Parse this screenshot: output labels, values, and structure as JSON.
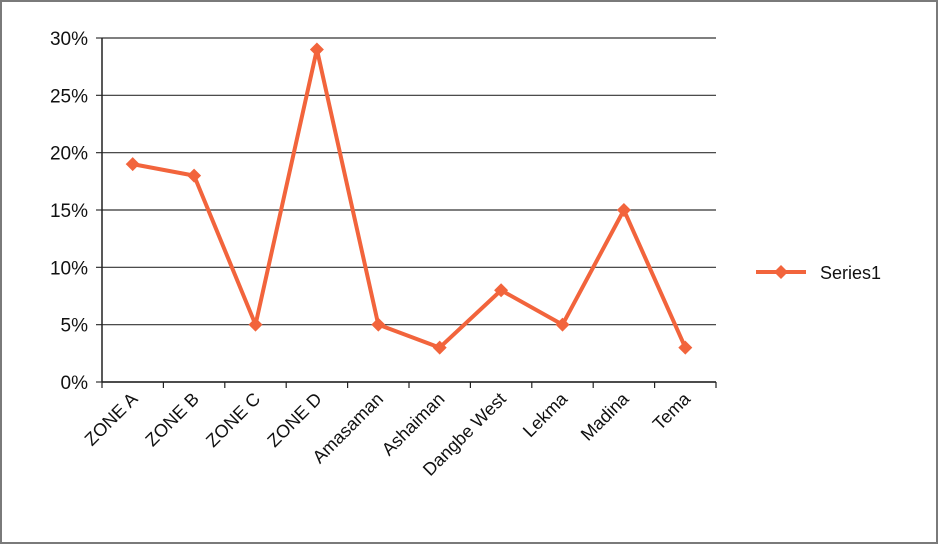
{
  "chart_data": {
    "type": "line",
    "categories": [
      "ZONE A",
      "ZONE B",
      "ZONE C",
      "ZONE D",
      "Amasaman",
      "Ashaiman",
      "Dangbe West",
      "Lekma",
      "Madina",
      "Tema"
    ],
    "series": [
      {
        "name": "Series1",
        "values": [
          19,
          18,
          5,
          29,
          5,
          3,
          8,
          5,
          15,
          3
        ],
        "color": "#f2643c"
      }
    ],
    "y_ticks": [
      "0%",
      "5%",
      "10%",
      "15%",
      "20%",
      "25%",
      "30%"
    ],
    "ylim": [
      0,
      30
    ],
    "y_unit": "percent",
    "grid": "horizontal",
    "legend_position": "right",
    "title": "",
    "xlabel": "",
    "ylabel": ""
  }
}
